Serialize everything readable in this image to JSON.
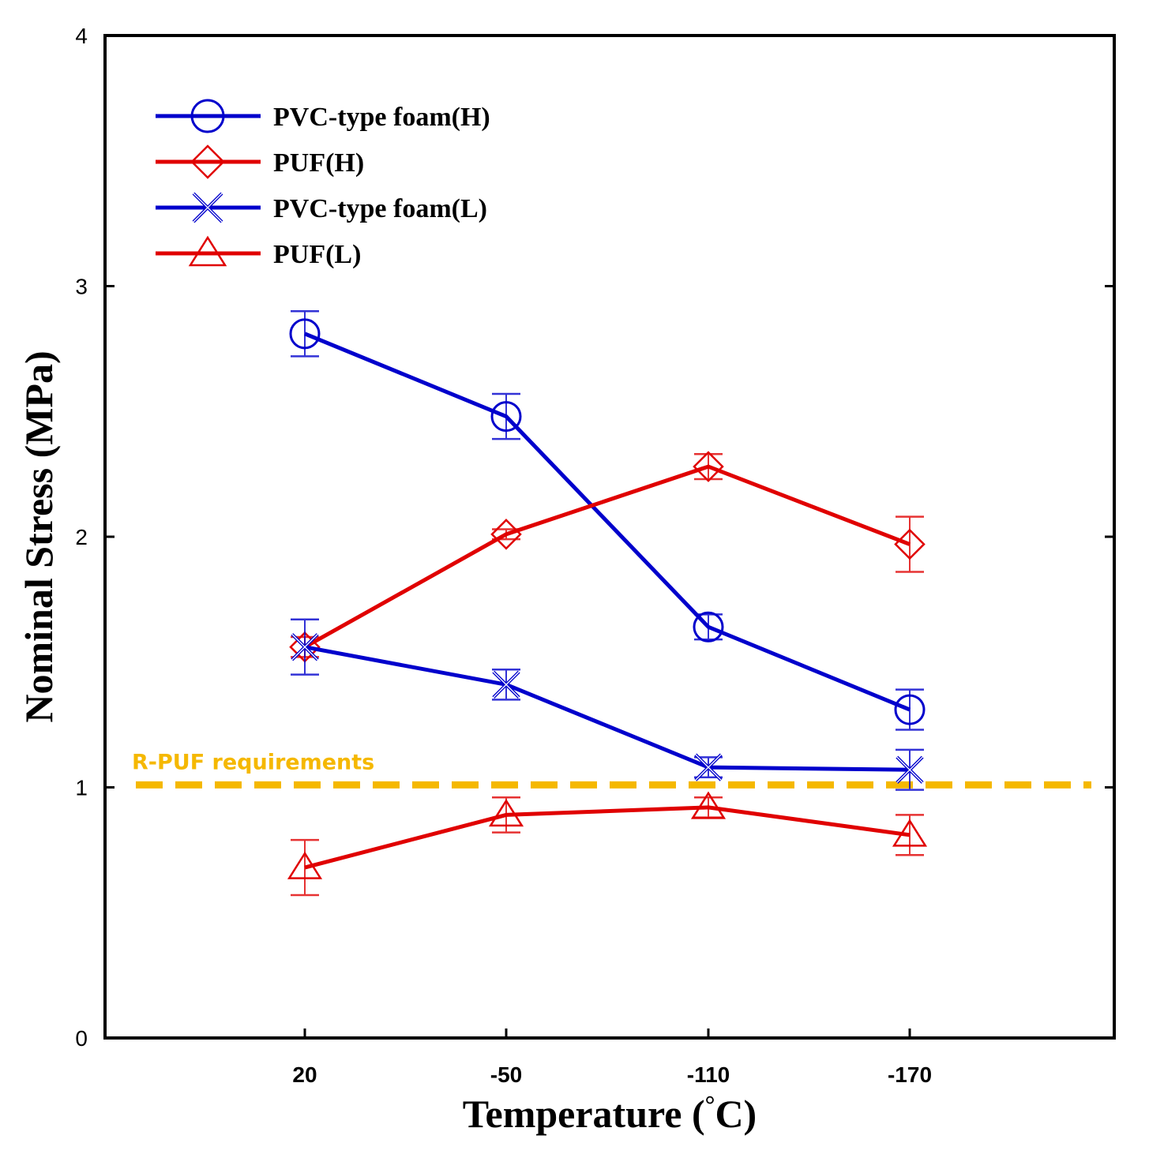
{
  "chart_data": {
    "type": "line",
    "title": "",
    "xlabel": "Temperature (°C)",
    "xlabel_parts": [
      "Temperature (",
      "°",
      "C)"
    ],
    "ylabel": "Nominal Stress (MPa)",
    "categories": [
      "20",
      "-50",
      "-110",
      "-170"
    ],
    "ylim": [
      0,
      4
    ],
    "yticks": [
      0,
      1,
      2,
      3,
      4
    ],
    "ytick_labels": [
      "0",
      "1",
      "2",
      "3",
      "4"
    ],
    "legend_position": "top-left",
    "series": [
      {
        "name": "PVC-type foam(H)",
        "color": "#0000CC",
        "marker": "circle",
        "values": [
          2.81,
          2.48,
          1.64,
          1.31
        ],
        "errors": [
          0.09,
          0.09,
          0.05,
          0.08
        ]
      },
      {
        "name": "PUF(H)",
        "color": "#E00000",
        "marker": "diamond",
        "values": [
          1.56,
          2.01,
          2.28,
          1.97
        ],
        "errors": [
          0.04,
          0.02,
          0.05,
          0.11
        ]
      },
      {
        "name": "PVC-type foam(L)",
        "color": "#0000CC",
        "marker": "x",
        "values": [
          1.56,
          1.41,
          1.08,
          1.07
        ],
        "errors": [
          0.11,
          0.06,
          0.04,
          0.08
        ]
      },
      {
        "name": "PUF(L)",
        "color": "#E00000",
        "marker": "triangle",
        "values": [
          0.68,
          0.89,
          0.92,
          0.81
        ],
        "errors": [
          0.11,
          0.07,
          0.04,
          0.08
        ]
      }
    ],
    "reference_line": {
      "label": "R-PUF requirements",
      "value": 1.01,
      "color": "#F5B800",
      "style": "dashed"
    }
  }
}
